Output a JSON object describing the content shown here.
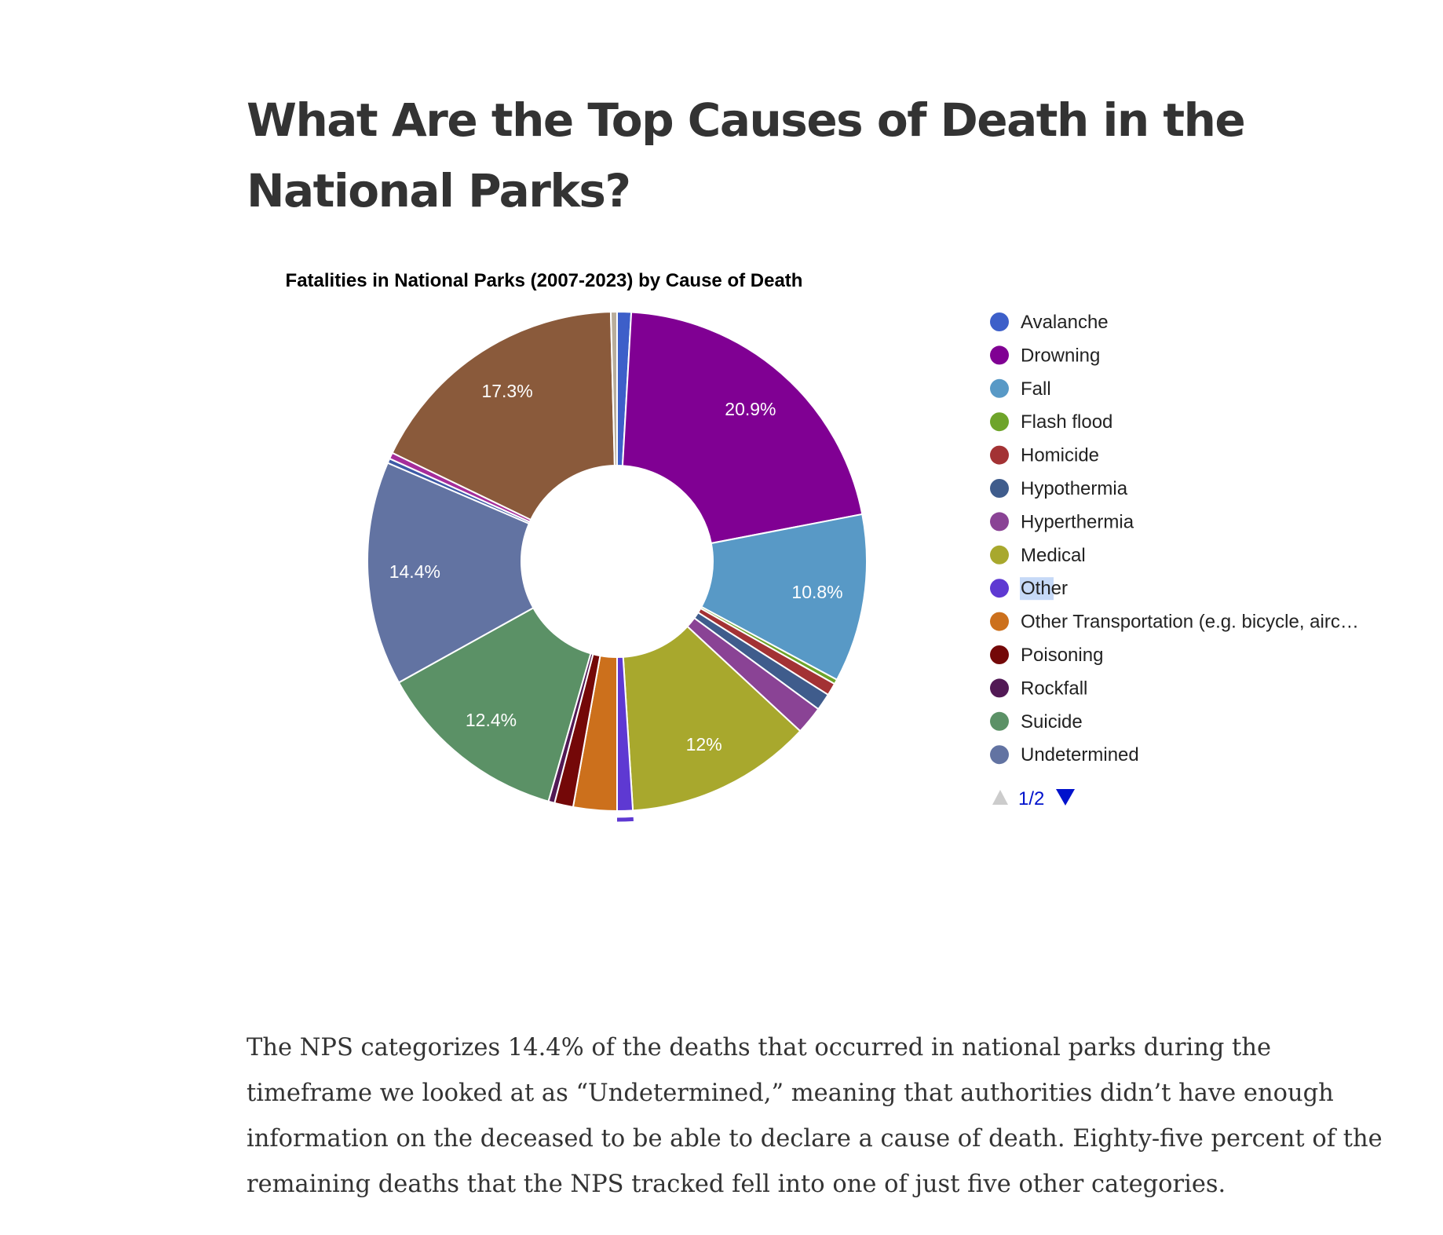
{
  "article": {
    "heading": "What Are the Top Causes of Death in the National Parks?",
    "paragraph": "The NPS categorizes 14.4% of the deaths that occurred in national parks during the timeframe we looked at as “Undetermined,” meaning that authorities didn’t have enough information on the deceased to be able to declare a cause of death. Eighty-five percent of the remaining deaths that the NPS tracked fell into one of just five other categories."
  },
  "legend": {
    "page_indicator": "1/2",
    "highlight_color": "#c6d9f7",
    "highlighted_item": "Other",
    "pager_up_color": "#cccccc",
    "pager_down_color": "#0011cc"
  },
  "chart_data": {
    "type": "pie",
    "donut": true,
    "title": "Fatalities in National Parks (2007-2023) by Cause of Death",
    "legend_position": "right",
    "start_angle_deg": 0,
    "units": "percent",
    "slices": [
      {
        "label": "Avalanche",
        "value": 0.9,
        "color": "#3d5fc9",
        "data_label": "",
        "in_legend": true
      },
      {
        "label": "Drowning",
        "value": 20.9,
        "color": "#800093",
        "data_label": "20.9%",
        "in_legend": true
      },
      {
        "label": "Fall",
        "value": 10.8,
        "color": "#5899c6",
        "data_label": "10.8%",
        "in_legend": true
      },
      {
        "label": "Flash flood",
        "value": 0.3,
        "color": "#6ea42a",
        "data_label": "",
        "in_legend": true
      },
      {
        "label": "Homicide",
        "value": 0.8,
        "color": "#a33234",
        "data_label": "",
        "in_legend": true
      },
      {
        "label": "Hypothermia",
        "value": 1.1,
        "color": "#3f5c8c",
        "data_label": "",
        "in_legend": true
      },
      {
        "label": "Hyperthermia",
        "value": 1.8,
        "color": "#8a4395",
        "data_label": "",
        "in_legend": true
      },
      {
        "label": "Medical",
        "value": 12.0,
        "color": "#a8a82d",
        "data_label": "12%",
        "in_legend": true
      },
      {
        "label": "Other",
        "value": 1.0,
        "color": "#5e39d2",
        "data_label": "",
        "in_legend": true
      },
      {
        "label": "Other Transportation (e.g. bicycle, airc…",
        "value": 2.8,
        "color": "#cc701c",
        "data_label": "",
        "in_legend": true
      },
      {
        "label": "Poisoning",
        "value": 1.2,
        "color": "#740808",
        "data_label": "",
        "in_legend": true
      },
      {
        "label": "Rockfall",
        "value": 0.4,
        "color": "#521955",
        "data_label": "",
        "in_legend": true
      },
      {
        "label": "Suicide",
        "value": 12.4,
        "color": "#5b9166",
        "data_label": "12.4%",
        "in_legend": true
      },
      {
        "label": "Undetermined",
        "value": 14.4,
        "color": "#6273a2",
        "data_label": "14.4%",
        "in_legend": true
      },
      {
        "label": "",
        "value": 0.3,
        "color": "#3d5aa6",
        "data_label": "",
        "in_legend": false
      },
      {
        "label": "",
        "value": 0.4,
        "color": "#a52d9a",
        "data_label": "",
        "in_legend": false
      },
      {
        "label": "",
        "value": 17.3,
        "color": "#8a5a3b",
        "data_label": "17.3%",
        "in_legend": false
      },
      {
        "label": "",
        "value": 0.4,
        "color": "#b9ad9b",
        "data_label": "",
        "in_legend": false
      }
    ]
  }
}
